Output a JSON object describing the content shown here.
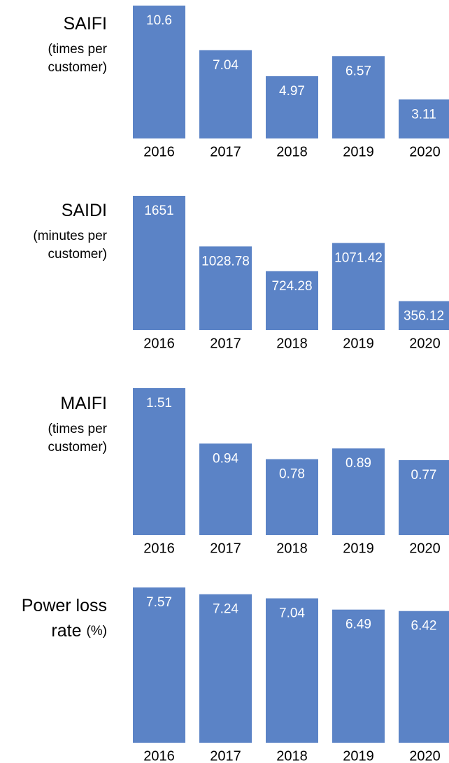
{
  "chart_data": [
    {
      "type": "bar",
      "title": [
        "SAIFI"
      ],
      "subtitle": [
        "(times per",
        "customer)"
      ],
      "categories": [
        "2016",
        "2017",
        "2018",
        "2019",
        "2020"
      ],
      "values": [
        10.6,
        7.04,
        4.97,
        6.57,
        3.11
      ],
      "color": "#5b83c6",
      "ylim": [
        0,
        10.6
      ]
    },
    {
      "type": "bar",
      "title": [
        "SAIDI"
      ],
      "subtitle": [
        "(minutes per",
        "customer)"
      ],
      "categories": [
        "2016",
        "2017",
        "2018",
        "2019",
        "2020"
      ],
      "values": [
        1651,
        1028.78,
        724.28,
        1071.42,
        356.12
      ],
      "color": "#5b83c6",
      "ylim": [
        0,
        1651
      ]
    },
    {
      "type": "bar",
      "title": [
        "MAIFI"
      ],
      "subtitle": [
        "(times per",
        "customer)"
      ],
      "categories": [
        "2016",
        "2017",
        "2018",
        "2019",
        "2020"
      ],
      "values": [
        1.51,
        0.94,
        0.78,
        0.89,
        0.77
      ],
      "color": "#5b83c6",
      "ylim": [
        0,
        1.51
      ]
    },
    {
      "type": "bar",
      "title": [
        "Power loss",
        "rate"
      ],
      "subtitle": [
        "(%)"
      ],
      "subtitle_inline": true,
      "categories": [
        "2016",
        "2017",
        "2018",
        "2019",
        "2020"
      ],
      "values": [
        7.57,
        7.24,
        7.04,
        6.49,
        6.42
      ],
      "color": "#5b83c6",
      "ylim": [
        0,
        7.57
      ]
    }
  ]
}
